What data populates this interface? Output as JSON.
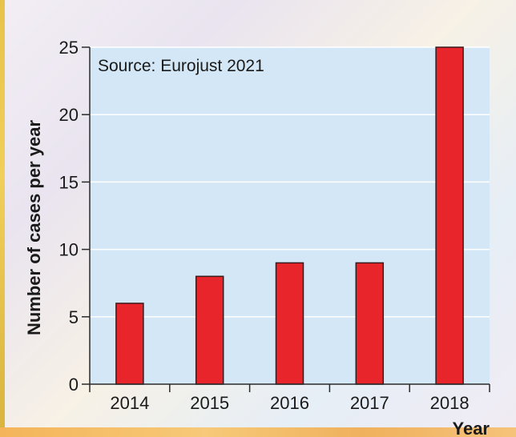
{
  "chart_data": {
    "type": "bar",
    "categories": [
      "2014",
      "2015",
      "2016",
      "2017",
      "2018"
    ],
    "values": [
      6,
      8,
      9,
      9,
      25
    ],
    "title": "",
    "xlabel": "Year",
    "ylabel": "Number of cases per year",
    "ylim": [
      0,
      25
    ],
    "yticks": [
      0,
      5,
      10,
      15,
      20,
      25
    ],
    "annotation": "Source: Eurojust 2021",
    "grid": true,
    "legend": "none",
    "colors": {
      "bar": "#e8252a",
      "bar_stroke": "#3a1a1a",
      "plot_bg": "#d3e7f6",
      "grid": "#ffffff",
      "axis": "#2a2a2a"
    }
  }
}
